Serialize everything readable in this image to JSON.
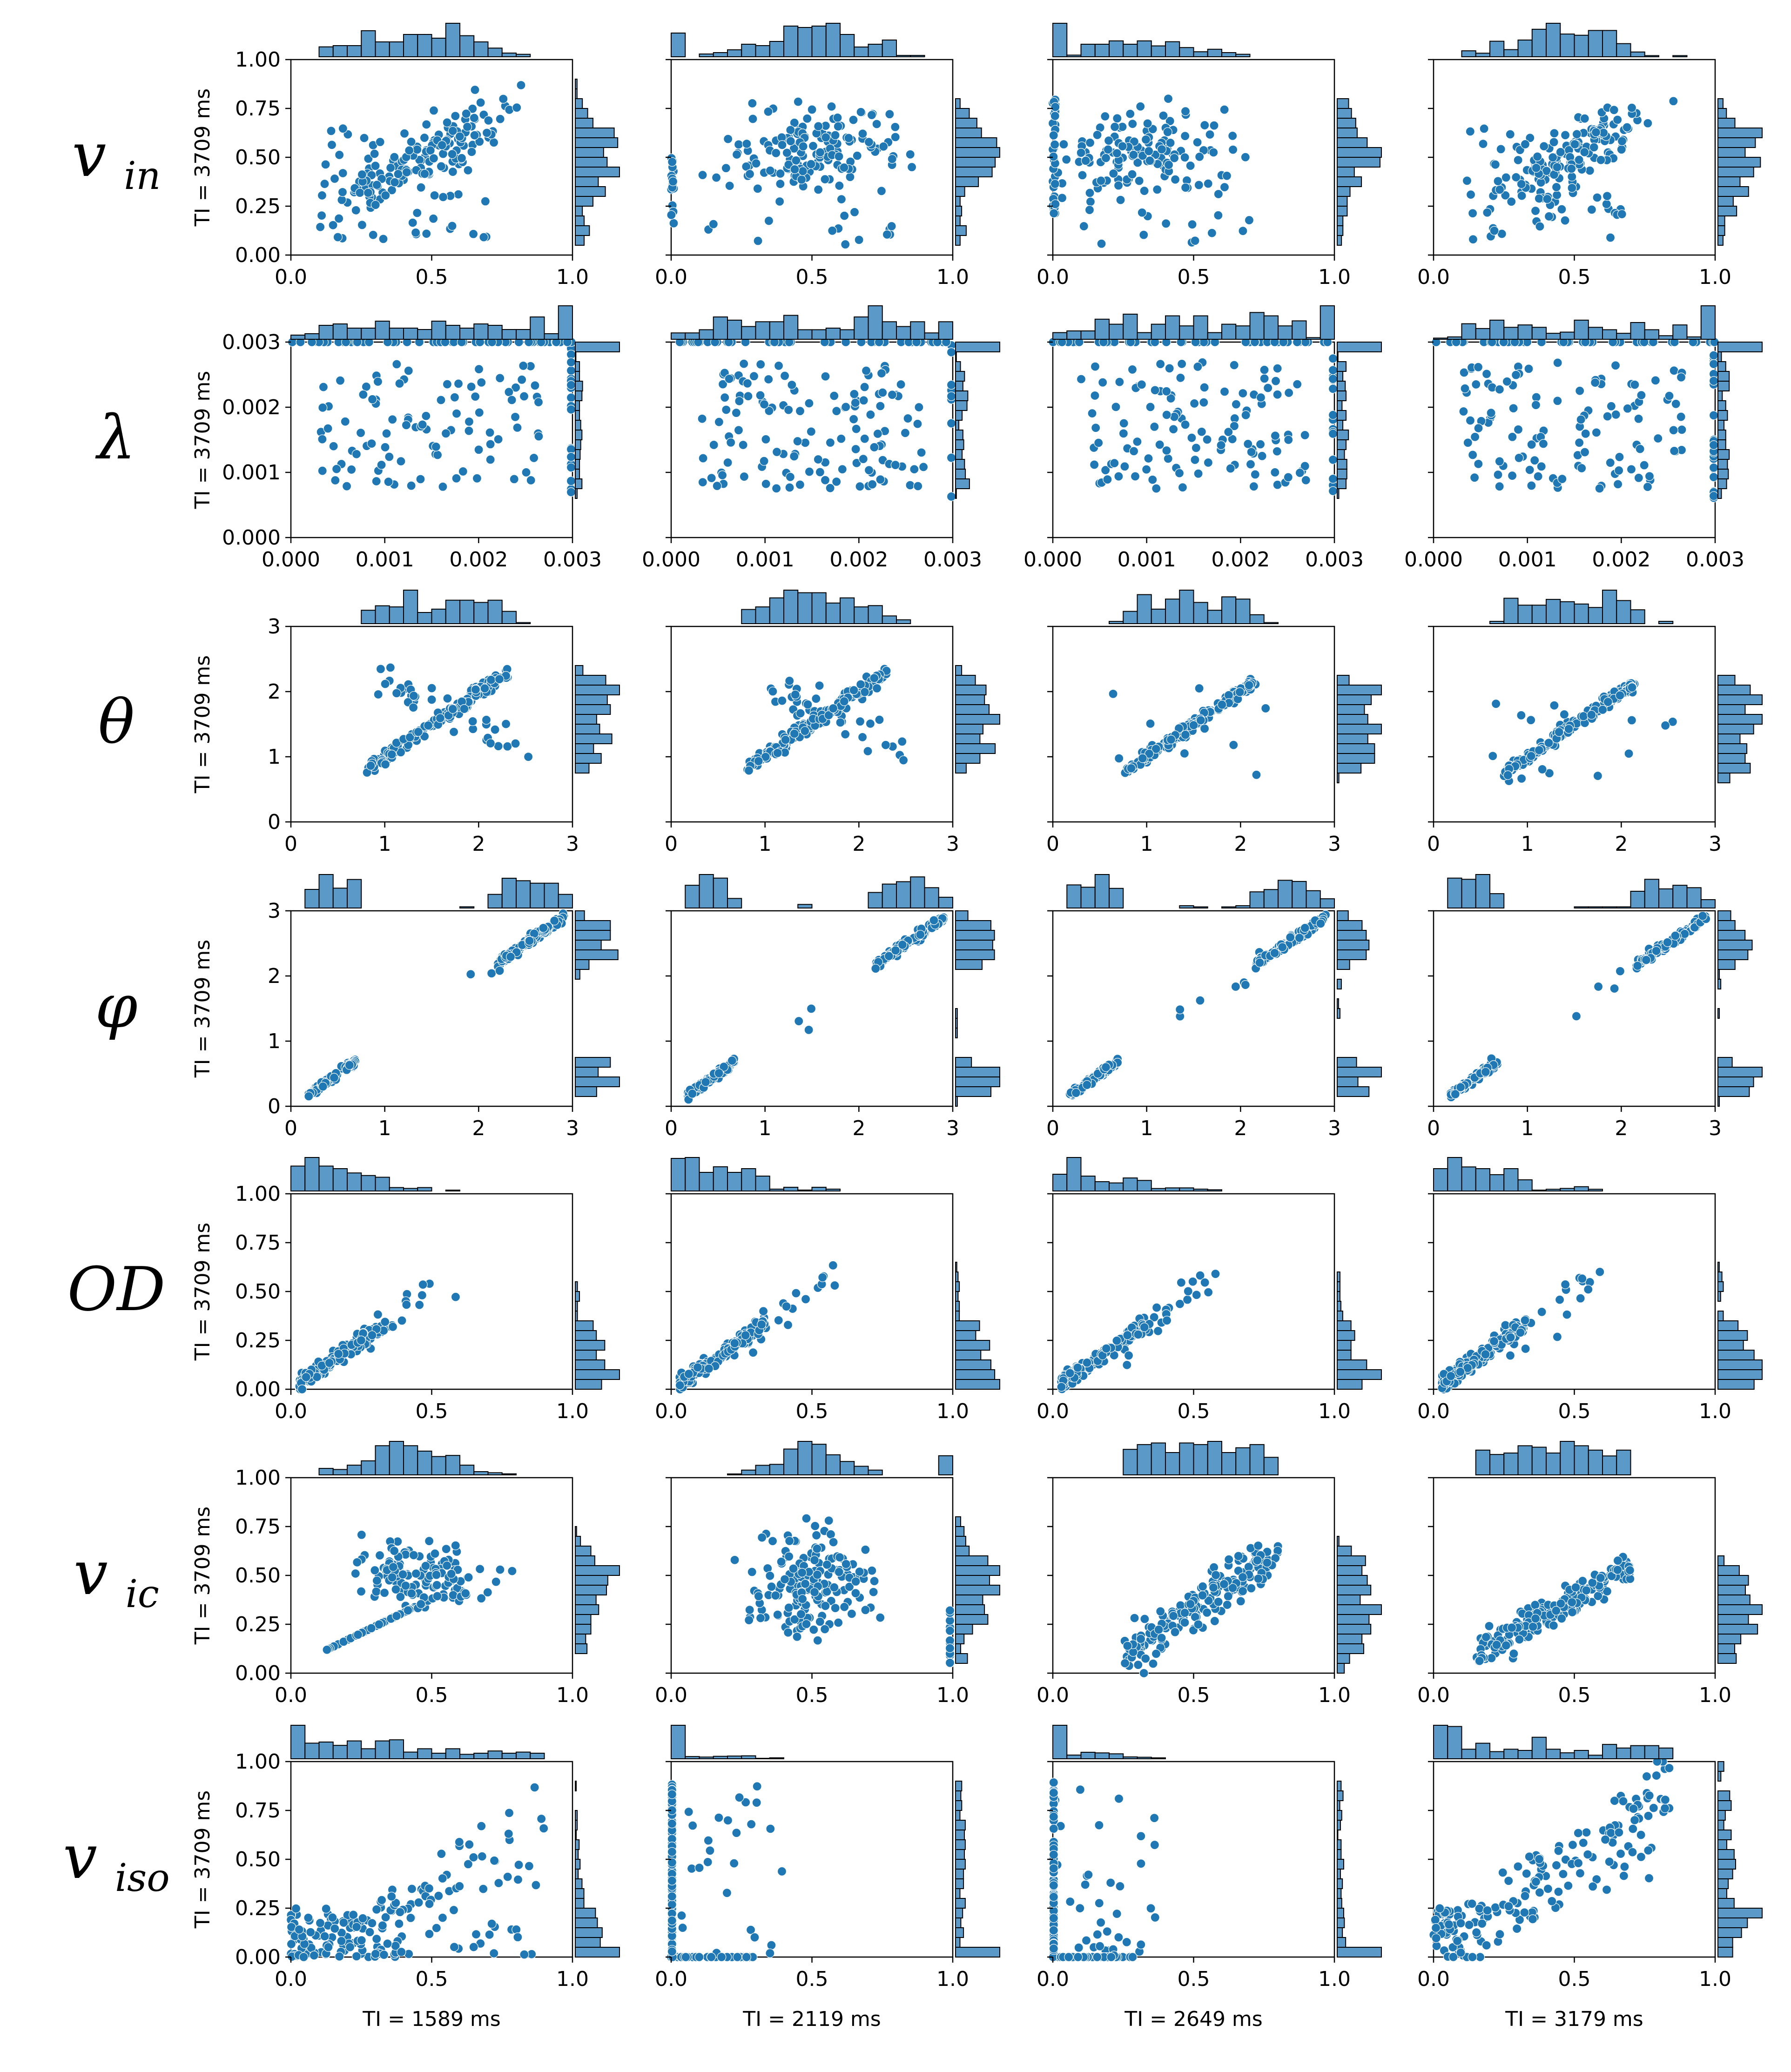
{
  "figure": {
    "type": "scatter-joint-grid",
    "description_rows": 7,
    "description_cols": 4
  },
  "chart_data": {
    "type": "scatter",
    "x_labels": [
      "TI = 1589 ms",
      "TI = 2119 ms",
      "TI = 2649 ms",
      "TI = 3179 ms"
    ],
    "y_label": "TI = 3709 ms",
    "rows": [
      {
        "label": "v_in",
        "label_main": "v",
        "label_sub": "in",
        "xlim": [
          0,
          1
        ],
        "ylim": [
          0,
          1
        ],
        "xticks": [
          "0.0",
          "0.5",
          "1.0"
        ],
        "yticks": [
          "0.00",
          "0.25",
          "0.50",
          "0.75",
          "1.00"
        ],
        "patterns": [
          "corr",
          "cluster",
          "spread-left",
          "corr"
        ]
      },
      {
        "label": "λ",
        "label_main": "λ",
        "label_sub": "",
        "xlim": [
          0,
          0.003
        ],
        "ylim": [
          0,
          0.003
        ],
        "xticks": [
          "0.000",
          "0.001",
          "0.002",
          "0.003"
        ],
        "yticks": [
          "0.000",
          "0.001",
          "0.002",
          "0.003"
        ],
        "patterns": [
          "lambda",
          "lambda",
          "lambda",
          "lambda"
        ]
      },
      {
        "label": "θ",
        "label_main": "θ",
        "label_sub": "",
        "xlim": [
          0,
          3
        ],
        "ylim": [
          0,
          3
        ],
        "xticks": [
          "0",
          "1",
          "2",
          "3"
        ],
        "yticks": [
          "0",
          "1",
          "2",
          "3"
        ],
        "patterns": [
          "diag-x",
          "diag-x",
          "diag",
          "diag"
        ]
      },
      {
        "label": "φ",
        "label_main": "φ",
        "label_sub": "",
        "xlim": [
          0,
          3
        ],
        "ylim": [
          0,
          3
        ],
        "xticks": [
          "0",
          "1",
          "2",
          "3"
        ],
        "yticks": [
          "0",
          "1",
          "2",
          "3"
        ],
        "patterns": [
          "phi",
          "phi",
          "phi",
          "phi"
        ]
      },
      {
        "label": "OD",
        "label_main": "OD",
        "label_sub": "",
        "xlim": [
          0,
          1
        ],
        "ylim": [
          0,
          1
        ],
        "xticks": [
          "0.0",
          "0.5",
          "1.0"
        ],
        "yticks": [
          "0.00",
          "0.25",
          "0.50",
          "0.75",
          "1.00"
        ],
        "patterns": [
          "od",
          "od",
          "od",
          "od"
        ]
      },
      {
        "label": "v_ic",
        "label_main": "v",
        "label_sub": "ic",
        "xlim": [
          0,
          1
        ],
        "ylim": [
          0,
          1
        ],
        "xticks": [
          "0.0",
          "0.5",
          "1.0"
        ],
        "yticks": [
          "0.00",
          "0.25",
          "0.50",
          "0.75",
          "1.00"
        ],
        "patterns": [
          "vic-a",
          "vic-b",
          "vic-c",
          "vic-d"
        ]
      },
      {
        "label": "v_iso",
        "label_main": "v",
        "label_sub": "iso",
        "xlim": [
          0,
          1
        ],
        "ylim": [
          0,
          1
        ],
        "xticks": [
          "0.0",
          "0.5",
          "1.0"
        ],
        "yticks": [
          "0.00",
          "0.25",
          "0.50",
          "0.75",
          "1.00"
        ],
        "patterns": [
          "iso-a",
          "iso-b",
          "iso-b",
          "iso-d"
        ]
      }
    ],
    "marginal_histograms": true,
    "point_color": "#1f77b4",
    "hist_color": "#5b9ac8",
    "approx_points_per_panel": 190
  },
  "colors": {
    "point": "#1f77b4",
    "point_edge": "#ffffff",
    "hist_fill": "#5b9ac8",
    "hist_edge": "#000000",
    "axes": "#000000"
  }
}
